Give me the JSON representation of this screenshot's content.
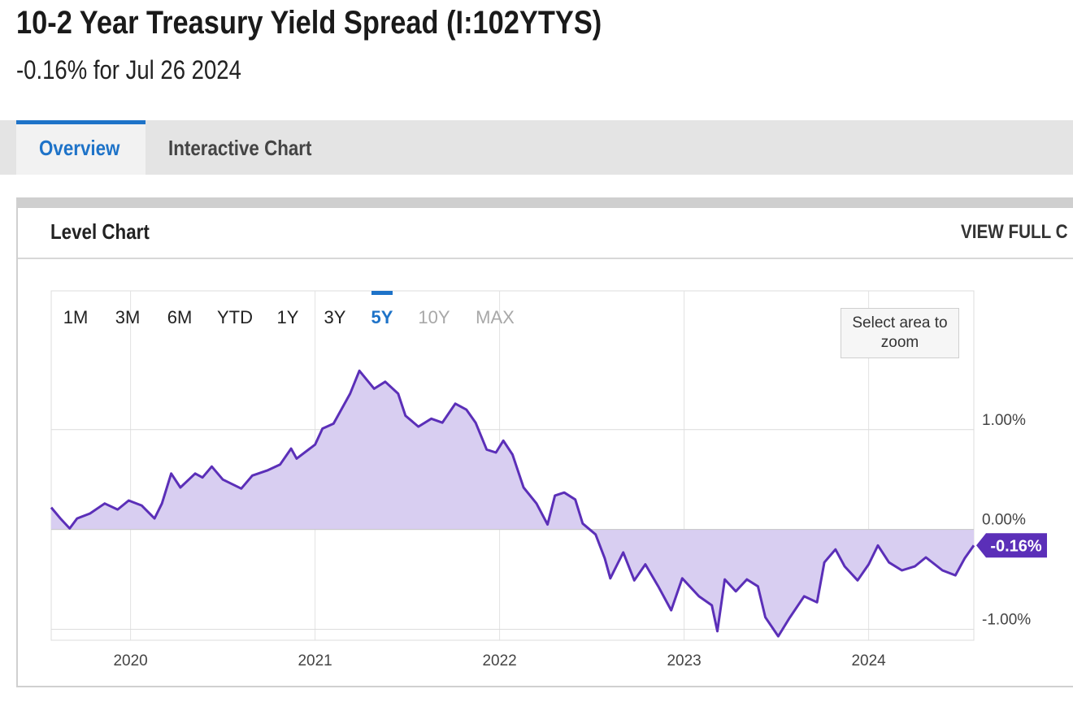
{
  "header": {
    "title": "10-2 Year Treasury Yield Spread (I:102YTYS)",
    "subtitle": "-0.16% for Jul 26 2024"
  },
  "tabs": [
    {
      "label": "Overview",
      "active": true
    },
    {
      "label": "Interactive Chart",
      "active": false
    }
  ],
  "panel": {
    "title": "Level Chart",
    "link": "VIEW FULL C"
  },
  "chart_data": {
    "type": "area",
    "range_buttons": [
      {
        "label": "1M",
        "state": "normal"
      },
      {
        "label": "3M",
        "state": "normal"
      },
      {
        "label": "6M",
        "state": "normal"
      },
      {
        "label": "YTD",
        "state": "normal"
      },
      {
        "label": "1Y",
        "state": "normal"
      },
      {
        "label": "3Y",
        "state": "normal"
      },
      {
        "label": "5Y",
        "state": "selected"
      },
      {
        "label": "10Y",
        "state": "disabled"
      },
      {
        "label": "MAX",
        "state": "disabled"
      }
    ],
    "zoom_hint": "Select area to zoom",
    "xlim": [
      2019.57,
      2024.57
    ],
    "xticks": [
      2020,
      2021,
      2022,
      2023,
      2024
    ],
    "ylim": [
      -1.11,
      2.39
    ],
    "yticks": [
      {
        "value": -1,
        "label": "-1.00%"
      },
      {
        "value": 0,
        "label": "0.00%"
      },
      {
        "value": 1,
        "label": "1.00%"
      }
    ],
    "grid": true,
    "x": [
      2019.57,
      2019.62,
      2019.67,
      2019.71,
      2019.78,
      2019.86,
      2019.93,
      2019.99,
      2020.06,
      2020.13,
      2020.17,
      2020.22,
      2020.27,
      2020.35,
      2020.39,
      2020.44,
      2020.5,
      2020.6,
      2020.66,
      2020.74,
      2020.81,
      2020.87,
      2020.9,
      2021.0,
      2021.04,
      2021.1,
      2021.19,
      2021.24,
      2021.32,
      2021.38,
      2021.45,
      2021.49,
      2021.56,
      2021.63,
      2021.69,
      2021.76,
      2021.82,
      2021.87,
      2021.93,
      2021.98,
      2022.02,
      2022.07,
      2022.13,
      2022.2,
      2022.26,
      2022.3,
      2022.35,
      2022.41,
      2022.45,
      2022.52,
      2022.57,
      2022.6,
      2022.67,
      2022.73,
      2022.79,
      2022.86,
      2022.93,
      2022.99,
      2023.08,
      2023.15,
      2023.18,
      2023.22,
      2023.28,
      2023.34,
      2023.4,
      2023.44,
      2023.51,
      2023.57,
      2023.65,
      2023.72,
      2023.76,
      2023.82,
      2023.87,
      2023.94,
      2024.0,
      2024.05,
      2024.11,
      2024.18,
      2024.25,
      2024.31,
      2024.4,
      2024.47,
      2024.52,
      2024.57
    ],
    "series": [
      {
        "name": "10-2 Year Treasury Yield Spread",
        "color": "#5b2fb8",
        "fill": "#d8cef1",
        "values": [
          0.22,
          0.11,
          0.01,
          0.11,
          0.16,
          0.26,
          0.2,
          0.29,
          0.24,
          0.11,
          0.26,
          0.56,
          0.42,
          0.56,
          0.52,
          0.63,
          0.5,
          0.41,
          0.54,
          0.59,
          0.65,
          0.81,
          0.71,
          0.85,
          1.01,
          1.06,
          1.36,
          1.59,
          1.41,
          1.48,
          1.36,
          1.14,
          1.03,
          1.11,
          1.07,
          1.26,
          1.2,
          1.07,
          0.8,
          0.77,
          0.89,
          0.75,
          0.42,
          0.26,
          0.05,
          0.34,
          0.37,
          0.3,
          0.06,
          -0.05,
          -0.29,
          -0.49,
          -0.23,
          -0.51,
          -0.35,
          -0.57,
          -0.81,
          -0.49,
          -0.67,
          -0.76,
          -1.02,
          -0.5,
          -0.62,
          -0.5,
          -0.57,
          -0.88,
          -1.07,
          -0.89,
          -0.67,
          -0.73,
          -0.33,
          -0.2,
          -0.37,
          -0.51,
          -0.35,
          -0.16,
          -0.33,
          -0.41,
          -0.37,
          -0.28,
          -0.41,
          -0.46,
          -0.29,
          -0.16
        ]
      }
    ],
    "current_value": {
      "value": -0.16,
      "label": "-0.16%"
    }
  }
}
